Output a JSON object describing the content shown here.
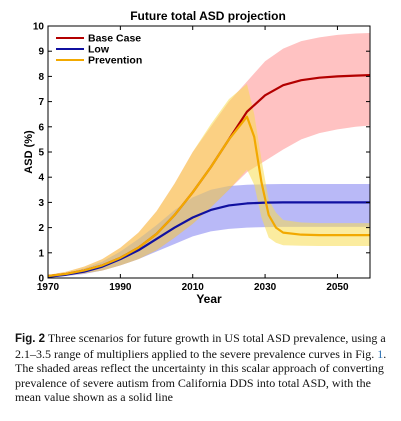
{
  "chart_data": {
    "type": "line",
    "title": "Future total ASD projection",
    "xlabel": "Year",
    "ylabel": "ASD (%)",
    "xlim": [
      1970,
      2059
    ],
    "ylim": [
      0,
      10
    ],
    "x_ticks": [
      1970,
      1990,
      2010,
      2030,
      2050
    ],
    "y_ticks": [
      0,
      1,
      2,
      3,
      4,
      5,
      6,
      7,
      8,
      9,
      10
    ],
    "legend_position": "top-left",
    "series": [
      {
        "name": "Base Case",
        "color": "#b30000",
        "band_color": "#ff8f8f",
        "x": [
          1970,
          1975,
          1980,
          1985,
          1990,
          1995,
          2000,
          2005,
          2010,
          2015,
          2020,
          2025,
          2030,
          2035,
          2040,
          2045,
          2050,
          2055,
          2059
        ],
        "values": [
          0.08,
          0.16,
          0.3,
          0.5,
          0.8,
          1.2,
          1.75,
          2.5,
          3.4,
          4.4,
          5.5,
          6.6,
          7.25,
          7.65,
          7.85,
          7.95,
          8.0,
          8.03,
          8.05
        ],
        "lower": [
          0.05,
          0.1,
          0.18,
          0.3,
          0.5,
          0.75,
          1.1,
          1.6,
          2.15,
          2.8,
          3.5,
          4.2,
          4.65,
          5.1,
          5.5,
          5.75,
          5.9,
          6.0,
          6.05
        ],
        "upper": [
          0.12,
          0.25,
          0.45,
          0.75,
          1.2,
          1.8,
          2.65,
          3.75,
          5.0,
          6.0,
          7.0,
          7.8,
          8.6,
          9.1,
          9.4,
          9.55,
          9.65,
          9.7,
          9.72
        ]
      },
      {
        "name": "Low",
        "color": "#1010a0",
        "band_color": "#8080f0",
        "x": [
          1970,
          1975,
          1980,
          1985,
          1990,
          1995,
          2000,
          2005,
          2010,
          2015,
          2020,
          2025,
          2030,
          2035,
          2040,
          2045,
          2050,
          2055,
          2059
        ],
        "values": [
          0.05,
          0.13,
          0.25,
          0.45,
          0.75,
          1.1,
          1.55,
          2.0,
          2.4,
          2.7,
          2.88,
          2.96,
          2.99,
          3.0,
          3.0,
          3.0,
          3.0,
          3.0,
          3.0
        ],
        "lower": [
          0.03,
          0.08,
          0.16,
          0.3,
          0.5,
          0.75,
          1.05,
          1.35,
          1.65,
          1.85,
          1.95,
          2.0,
          2.02,
          2.03,
          2.03,
          2.03,
          2.03,
          2.03,
          2.03
        ],
        "upper": [
          0.08,
          0.2,
          0.38,
          0.65,
          1.05,
          1.55,
          2.1,
          2.7,
          3.2,
          3.5,
          3.65,
          3.7,
          3.72,
          3.73,
          3.73,
          3.73,
          3.73,
          3.73,
          3.73
        ]
      },
      {
        "name": "Prevention",
        "color": "#f2a900",
        "band_color": "#f7dc50",
        "x": [
          1970,
          1975,
          1980,
          1985,
          1990,
          1995,
          2000,
          2005,
          2010,
          2015,
          2020,
          2025,
          2027,
          2029,
          2031,
          2033,
          2035,
          2040,
          2045,
          2050,
          2059
        ],
        "values": [
          0.08,
          0.16,
          0.3,
          0.5,
          0.8,
          1.2,
          1.75,
          2.5,
          3.4,
          4.4,
          5.5,
          6.4,
          5.6,
          3.8,
          2.5,
          2.0,
          1.8,
          1.72,
          1.7,
          1.7,
          1.7
        ],
        "lower": [
          0.05,
          0.1,
          0.18,
          0.3,
          0.5,
          0.75,
          1.1,
          1.6,
          2.15,
          2.8,
          3.5,
          4.3,
          3.7,
          2.4,
          1.6,
          1.4,
          1.3,
          1.28,
          1.27,
          1.27,
          1.27
        ],
        "upper": [
          0.12,
          0.25,
          0.45,
          0.75,
          1.2,
          1.8,
          2.65,
          3.75,
          5.0,
          6.1,
          7.1,
          7.7,
          6.5,
          4.7,
          3.1,
          2.6,
          2.3,
          2.2,
          2.18,
          2.18,
          2.18
        ]
      }
    ]
  },
  "caption": {
    "label": "Fig. 2",
    "text_1": " Three scenarios for future growth in US total ASD prevalence, using a 2.1–3.5 range of multipliers applied to the severe prevalence curves in Fig. ",
    "ref": "1",
    "text_2": ". The shaded areas reflect the uncertainty in this scalar approach of converting prevalence of severe autism from California DDS into total ASD, with the mean value shown as a solid line"
  }
}
